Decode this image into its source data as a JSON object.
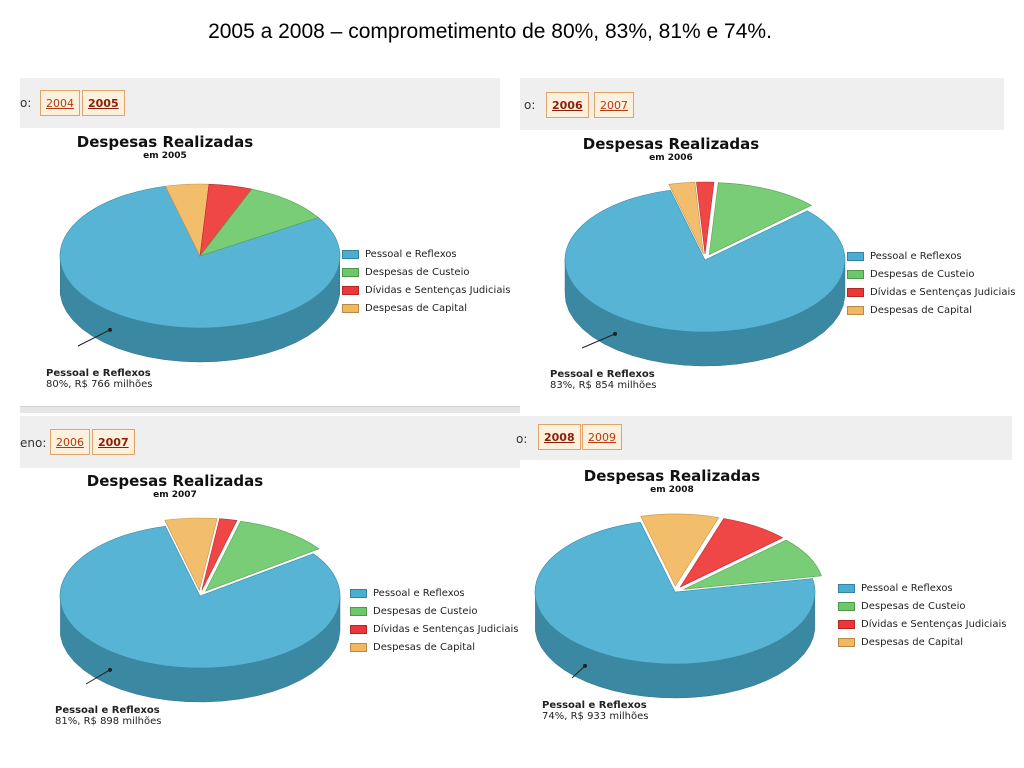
{
  "page": {
    "title": "2005 a 2008 – comprometimento de 80%, 83%, 81% e 74%."
  },
  "categories": [
    "Pessoal e Reflexos",
    "Despesas de Custeio",
    "Dívidas e Sentenças Judiciais",
    "Despesas de Capital"
  ],
  "colors": [
    "#4aaed0",
    "#6cc96a",
    "#ee3636",
    "#f2b860"
  ],
  "panels": [
    {
      "tabs": {
        "lead": "o:",
        "years": [
          "2004",
          "2005"
        ],
        "active": 1
      },
      "title": "Despesas Realizadas",
      "subtitle": "em 2005",
      "callout": {
        "name": "Pessoal e Reflexos",
        "detail": "80%, R$ 766 milhões"
      }
    },
    {
      "tabs": {
        "lead": "o:",
        "years": [
          "2006",
          "2007"
        ],
        "active": 0
      },
      "title": "Despesas Realizadas",
      "subtitle": "em 2006",
      "callout": {
        "name": "Pessoal e Reflexos",
        "detail": "83%, R$ 854 milhões"
      }
    },
    {
      "tabs": {
        "lead": "eno:",
        "years": [
          "2006",
          "2007"
        ],
        "active": 1
      },
      "title": "Despesas Realizadas",
      "subtitle": "em 2007",
      "callout": {
        "name": "Pessoal e Reflexos",
        "detail": "81%, R$ 898 milhões"
      }
    },
    {
      "tabs": {
        "lead": "o:",
        "years": [
          "2008",
          "2009"
        ],
        "active": 0
      },
      "title": "Despesas Realizadas",
      "subtitle": "em 2008",
      "callout": {
        "name": "Pessoal e Reflexos",
        "detail": "74%, R$ 933 milhões"
      }
    }
  ],
  "chart_data": [
    {
      "type": "pie",
      "title": "Despesas Realizadas",
      "subtitle": "em 2005",
      "categories": [
        "Pessoal e Reflexos",
        "Despesas de Custeio",
        "Dívidas e Sentenças Judiciais",
        "Despesas de Capital"
      ],
      "values": [
        80,
        10,
        5,
        5
      ],
      "legend": "right"
    },
    {
      "type": "pie",
      "title": "Despesas Realizadas",
      "subtitle": "em 2006",
      "categories": [
        "Pessoal e Reflexos",
        "Despesas de Custeio",
        "Dívidas e Sentenças Judiciais",
        "Despesas de Capital"
      ],
      "values": [
        83,
        12,
        2,
        3
      ],
      "legend": "right"
    },
    {
      "type": "pie",
      "title": "Despesas Realizadas",
      "subtitle": "em 2007",
      "categories": [
        "Pessoal e Reflexos",
        "Despesas de Custeio",
        "Dívidas e Sentenças Judiciais",
        "Despesas de Capital"
      ],
      "values": [
        81,
        11,
        2,
        6
      ],
      "legend": "right"
    },
    {
      "type": "pie",
      "title": "Despesas Realizadas",
      "subtitle": "em 2008",
      "categories": [
        "Pessoal e Reflexos",
        "Despesas de Custeio",
        "Dívidas e Sentenças Judiciais",
        "Despesas de Capital"
      ],
      "values": [
        74,
        9,
        8,
        9
      ],
      "legend": "right"
    }
  ]
}
